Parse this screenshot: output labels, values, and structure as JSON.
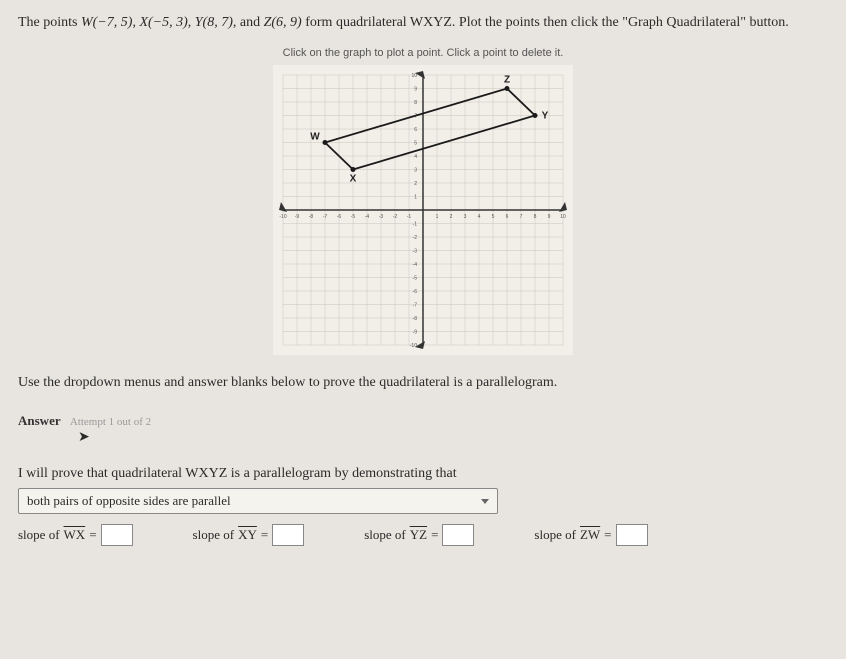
{
  "problem": {
    "prefix": "The points ",
    "w": "W(−7, 5)",
    "x": "X(−5, 3)",
    "y": "Y(8, 7)",
    "z": "Z(6, 9)",
    "mid": " form quadrilateral WXYZ. Plot the points then click the \"Graph Quadrilateral\" button."
  },
  "instruction": "Click on the graph to plot a point. Click a point to delete it.",
  "graph": {
    "xmin": -10,
    "xmax": 10,
    "ymin": -10,
    "ymax": 10,
    "grid_color": "#c8c4bc",
    "axis_color": "#333333",
    "line_color": "#1a1a1a",
    "bg_color": "#f2efe9",
    "points": {
      "W": {
        "x": -7,
        "y": 5
      },
      "X": {
        "x": -5,
        "y": 3
      },
      "Y": {
        "x": 8,
        "y": 7
      },
      "Z": {
        "x": 6,
        "y": 9
      }
    },
    "labels": {
      "W": "W",
      "X": "X",
      "Y": "Y",
      "Z": "Z"
    },
    "tick_labels_x": [
      "-10",
      "-9",
      "-8",
      "-7",
      "-6",
      "-5",
      "-4",
      "-3",
      "-2",
      "-1",
      "1",
      "2",
      "3",
      "4",
      "5",
      "6",
      "7",
      "8",
      "9",
      "10"
    ],
    "tick_labels_y": [
      "10",
      "9",
      "8",
      "7",
      "6",
      "5",
      "4",
      "3",
      "2",
      "1",
      "-1",
      "-2",
      "-3",
      "-4",
      "-5",
      "-6",
      "-7",
      "-8",
      "-9",
      "-10"
    ]
  },
  "prove_text": "Use the dropdown menus and answer blanks below to prove the quadrilateral is a parallelogram.",
  "answer_label": "Answer",
  "attempt_text": "Attempt 1 out of 2",
  "proof_intro": "I will prove that quadrilateral WXYZ is a parallelogram by demonstrating that",
  "dropdown_value": "both pairs of opposite sides are parallel",
  "slopes": {
    "wx": {
      "label": "slope of ",
      "seg": "WX",
      "eq": " = "
    },
    "xy": {
      "label": "slope of ",
      "seg": "XY",
      "eq": " = "
    },
    "yz": {
      "label": "slope of ",
      "seg": "YZ",
      "eq": " = "
    },
    "zw": {
      "label": "slope of ",
      "seg": "ZW",
      "eq": " = "
    }
  }
}
